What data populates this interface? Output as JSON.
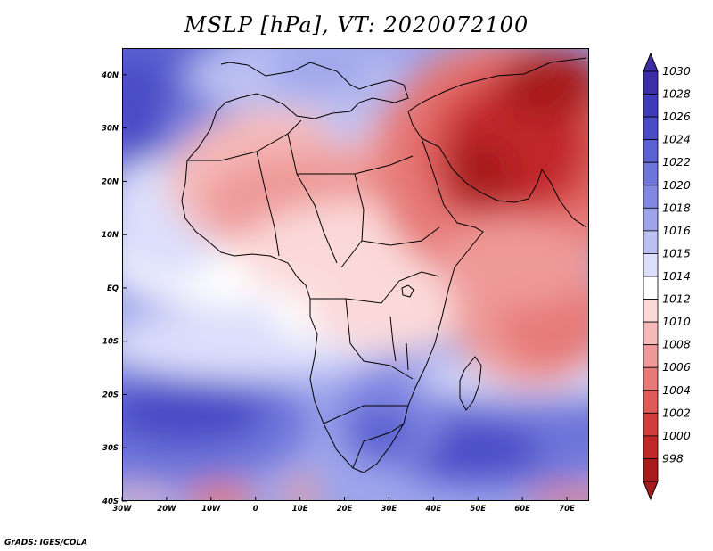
{
  "figure": {
    "title": "MSLP [hPa], VT: 2020072100",
    "credit": "GrADS: IGES/COLA"
  },
  "map": {
    "variable": "Mean Sea Level Pressure",
    "lon_range": [
      -30,
      75
    ],
    "lat_range": [
      -40,
      45
    ],
    "x_ticks": [
      {
        "lon": -30,
        "label": "30W"
      },
      {
        "lon": -20,
        "label": "20W"
      },
      {
        "lon": -10,
        "label": "10W"
      },
      {
        "lon": 0,
        "label": "0"
      },
      {
        "lon": 10,
        "label": "10E"
      },
      {
        "lon": 20,
        "label": "20E"
      },
      {
        "lon": 30,
        "label": "30E"
      },
      {
        "lon": 40,
        "label": "40E"
      },
      {
        "lon": 50,
        "label": "50E"
      },
      {
        "lon": 60,
        "label": "60E"
      },
      {
        "lon": 70,
        "label": "70E"
      }
    ],
    "y_ticks": [
      {
        "lat": 40,
        "label": "40N"
      },
      {
        "lat": 30,
        "label": "30N"
      },
      {
        "lat": 20,
        "label": "20N"
      },
      {
        "lat": 10,
        "label": "10N"
      },
      {
        "lat": 0,
        "label": "EQ"
      },
      {
        "lat": -10,
        "label": "10S"
      },
      {
        "lat": -20,
        "label": "20S"
      },
      {
        "lat": -30,
        "label": "30S"
      },
      {
        "lat": -40,
        "label": "40S"
      }
    ]
  },
  "colorbar": {
    "units": "hPa",
    "levels": [
      {
        "label": "1030",
        "color": "#3b2ea6"
      },
      {
        "label": "1028",
        "color": "#3e3cb8"
      },
      {
        "label": "1026",
        "color": "#4a4cc6"
      },
      {
        "label": "1024",
        "color": "#5a61d0"
      },
      {
        "label": "1022",
        "color": "#6e76da"
      },
      {
        "label": "1020",
        "color": "#8389e2"
      },
      {
        "label": "1018",
        "color": "#9ea5eb"
      },
      {
        "label": "1016",
        "color": "#bcc1f3"
      },
      {
        "label": "1015",
        "color": "#dcdffb"
      },
      {
        "label": "1014",
        "color": "#ffffff"
      },
      {
        "label": "1012",
        "color": "#fbd9d9"
      },
      {
        "label": "1010",
        "color": "#f5b9b8"
      },
      {
        "label": "1008",
        "color": "#ee9a98"
      },
      {
        "label": "1006",
        "color": "#e67a78"
      },
      {
        "label": "1004",
        "color": "#dd5c5a"
      },
      {
        "label": "1002",
        "color": "#d13e3c"
      },
      {
        "label": "1000",
        "color": "#c12829"
      },
      {
        "label": "998",
        "color": "#a81b1d"
      }
    ]
  }
}
